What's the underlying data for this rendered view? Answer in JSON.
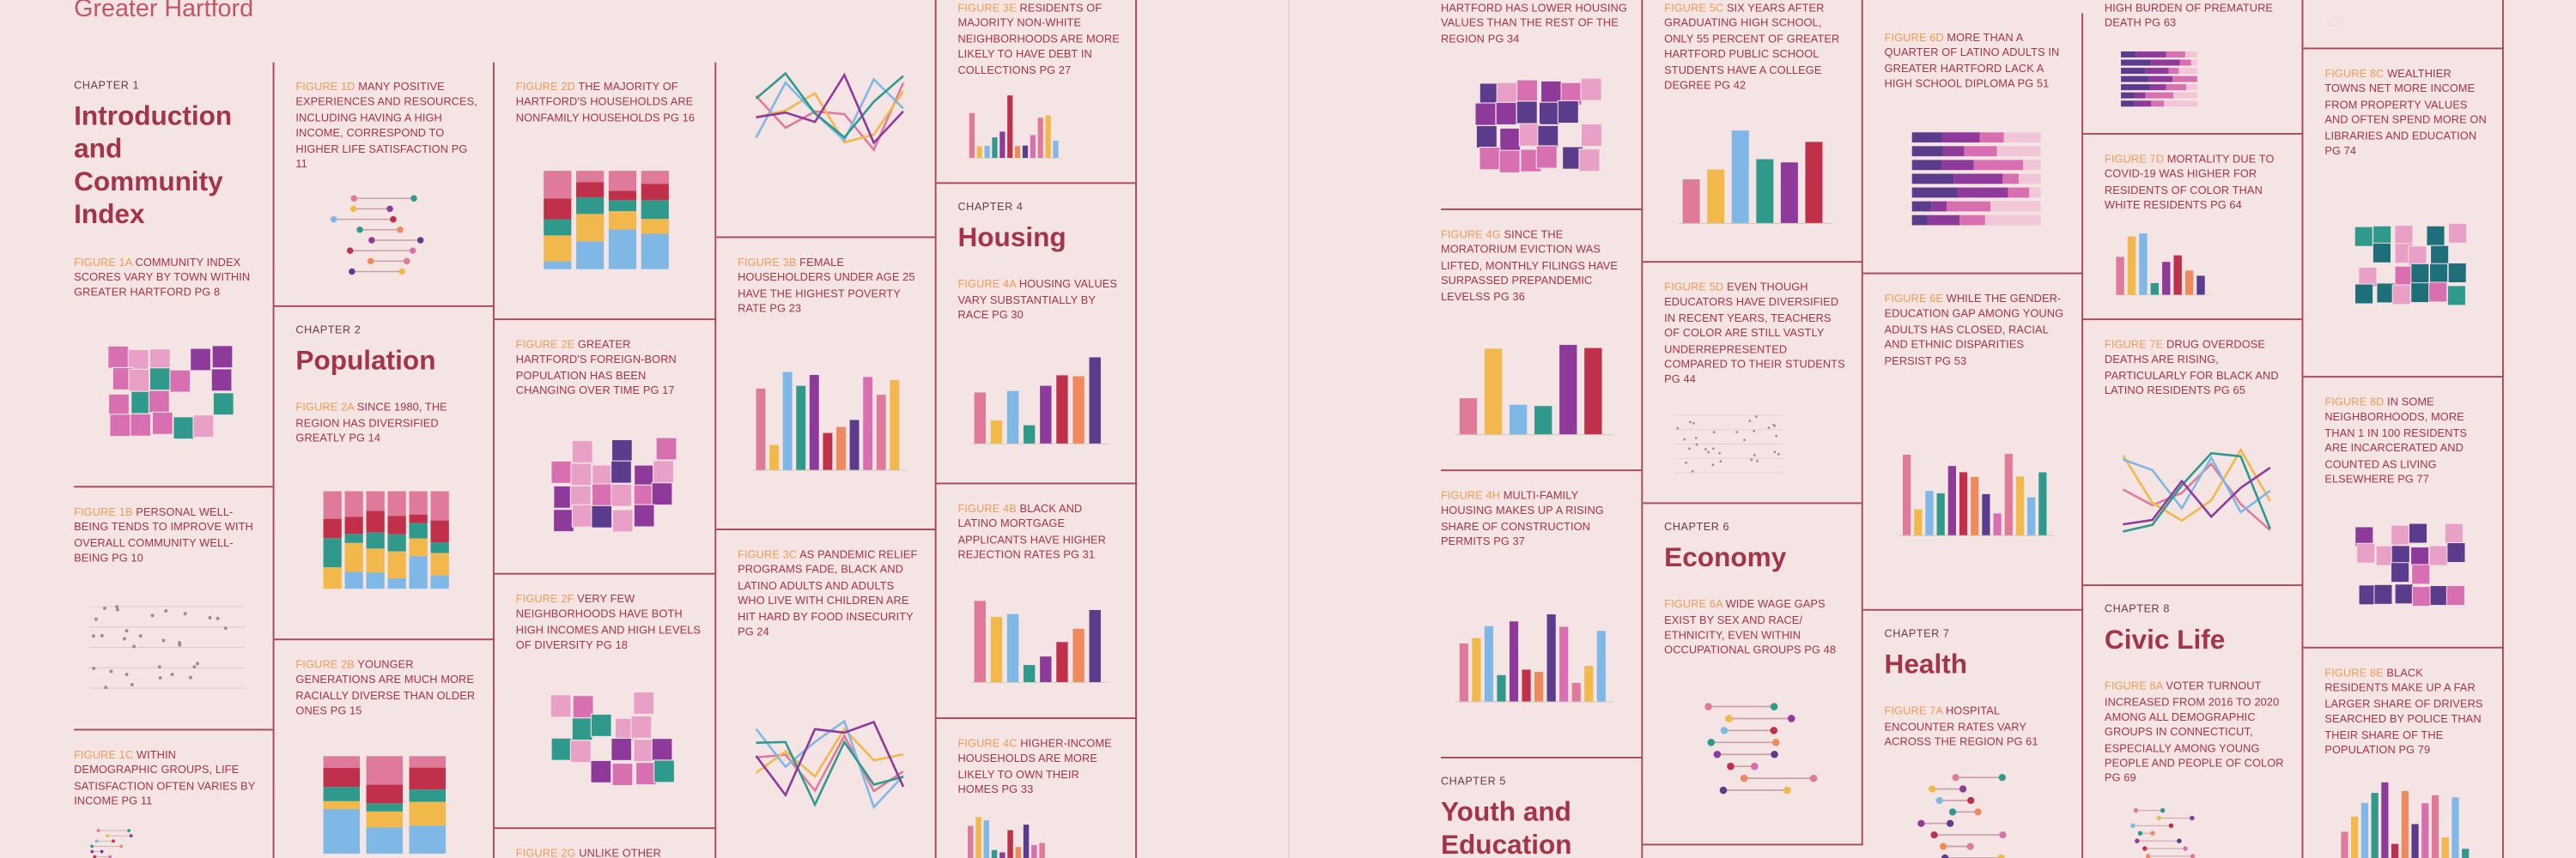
{
  "header": {
    "title": "Greater Hartford"
  },
  "cells": [
    {
      "chapter": "CHAPTER 1",
      "chapter_title": "Introduction and Community Index",
      "figure": {
        "label": "FIGURE 1A",
        "text": "COMMUNITY INDEX SCORES VARY BY TOWN WITHIN GREATER HARTFORD",
        "page": "PG 8"
      }
    },
    {
      "figure": {
        "label": "FIGURE 1B",
        "text": "PERSONAL WELL-BEING TENDS TO IMPROVE WITH OVERALL COMMUNITY WELL-BEING",
        "page": "PG 10"
      }
    },
    {
      "figure": {
        "label": "FIGURE 1C",
        "text": "WITHIN DEMOGRAPHIC GROUPS, LIFE SATISFACTION OFTEN VARIES BY INCOME",
        "page": "PG 11"
      }
    },
    {
      "figure": {
        "label": "FIGURE 1D",
        "text": "MANY POSITIVE EXPERIENCES AND RESOURCES, INCLUDING HAVING A HIGH INCOME, CORRESPOND TO HIGHER LIFE SATISFACTION",
        "page": "PG 11"
      }
    },
    {
      "chapter": "CHAPTER 2",
      "chapter_title": "Population",
      "figure": {
        "label": "FIGURE 2A",
        "text": "SINCE 1980, THE REGION HAS DIVERSIFIED GREATLY",
        "page": "PG 14"
      }
    },
    {
      "figure": {
        "label": "FIGURE 2B",
        "text": "YOUNGER GENERATIONS ARE MUCH MORE RACIALLY DIVERSE THAN OLDER ONES",
        "page": "PG 15"
      }
    },
    {
      "figure": {
        "label": "FIGURE 2D",
        "text": "THE MAJORITY OF HARTFORD'S HOUSEHOLDS ARE NONFAMILY HOUSEHOLDS",
        "page": "PG 16"
      }
    },
    {
      "figure": {
        "label": "FIGURE 2E",
        "text": "GREATER HARTFORD'S FOREIGN-BORN POPULATION HAS BEEN CHANGING OVER TIME",
        "page": "PG 17"
      }
    },
    {
      "figure": {
        "label": "FIGURE 2F",
        "text": "VERY FEW NEIGHBORHOODS HAVE BOTH HIGH INCOMES AND HIGH LEVELS OF DIVERSITY",
        "page": "PG 18"
      }
    },
    {
      "figure": {
        "label": "FIGURE 2G",
        "text": "UNLIKE OTHER"
      }
    },
    {},
    {
      "figure": {
        "label": "FIGURE 3B",
        "text": "FEMALE HOUSEHOLDERS UNDER AGE 25 HAVE THE HIGHEST POVERTY RATE",
        "page": "PG 23"
      }
    },
    {
      "figure": {
        "label": "FIGURE 3C",
        "text": "AS PANDEMIC RELIEF PROGRAMS FADE, BLACK AND LATINO ADULTS AND ADULTS WHO LIVE WITH CHILDREN ARE HIT HARD BY FOOD INSECURITY",
        "page": "PG 24"
      }
    },
    {
      "figure": {
        "label": "FIGURE 3E",
        "text": "RESIDENTS OF MAJORITY NON-WHITE NEIGHBORHOODS ARE MORE LIKELY TO HAVE DEBT IN COLLECTIONS",
        "page": "PG 27"
      }
    },
    {
      "chapter": "CHAPTER 4",
      "chapter_title": "Housing",
      "figure": {
        "label": "FIGURE 4A",
        "text": "HOUSING VALUES VARY SUBSTANTIALLY BY RACE",
        "page": "PG 30"
      }
    },
    {
      "figure": {
        "label": "FIGURE 4B",
        "text": "BLACK AND LATINO MORTGAGE APPLICANTS HAVE HIGHER REJECTION RATES",
        "page": "PG 31"
      }
    },
    {
      "figure": {
        "label": "FIGURE 4C",
        "text": "HIGHER-INCOME HOUSEHOLDS ARE MORE LIKELY TO OWN THEIR HOMES",
        "page": "PG 33"
      }
    },
    {
      "figure": {
        "text": "HARTFORD HAS LOWER HOUSING VALUES THAN THE REST OF THE REGION",
        "page": "PG 34"
      }
    },
    {
      "figure": {
        "label": "FIGURE 4G",
        "text": "SINCE THE MORATORIUM EVICTION WAS LIFTED, MONTHLY FILINGS HAVE SURPASSED PREPANDEMIC LEVELSS",
        "page": "PG 36"
      }
    },
    {
      "figure": {
        "label": "FIGURE 4H",
        "text": "MULTI-FAMILY HOUSING MAKES UP A RISING SHARE OF CONSTRUCTION PERMITS",
        "page": "PG 37"
      }
    },
    {
      "chapter": "CHAPTER 5",
      "chapter_title": "Youth and Education"
    },
    {
      "figure": {
        "label": "FIGURE 5C",
        "text": "SIX YEARS AFTER GRADUATING HIGH SCHOOL, ONLY 55 PERCENT OF GREATER HARTFORD PUBLIC SCHOOL STUDENTS HAVE A COLLEGE DEGREE",
        "page": "PG 42"
      }
    },
    {
      "figure": {
        "label": "FIGURE 5D",
        "text": "EVEN THOUGH EDUCATORS HAVE DIVERSIFIED IN RECENT YEARS, TEACHERS OF COLOR ARE STILL VASTLY UNDERREPRESENTED COMPARED TO THEIR STUDENTS",
        "page": "PG 44"
      }
    },
    {
      "chapter": "CHAPTER 6",
      "chapter_title": "Economy",
      "figure": {
        "label": "FIGURE 6A",
        "text": "WIDE WAGE GAPS EXIST BY SEX AND RACE/ ETHNICITY, EVEN WITHIN OCCUPATIONAL GROUPS",
        "page": "PG 48"
      }
    },
    {
      "figure": {
        "label": "FIGURE 6D",
        "text": "MORE THAN A QUARTER OF LATINO ADULTS IN GREATER HARTFORD LACK A HIGH SCHOOL DIPLOMA",
        "page": "PG 51"
      }
    },
    {
      "figure": {
        "label": "FIGURE 6E",
        "text": "WHILE THE GENDER-EDUCATION GAP AMONG YOUNG ADULTS HAS CLOSED, RACIAL AND ETHNIC DISPARITIES PERSIST",
        "page": "PG 53"
      }
    },
    {
      "chapter": "CHAPTER 7",
      "chapter_title": "Health",
      "figure": {
        "label": "FIGURE 7A",
        "text": "HOSPITAL ENCOUNTER RATES VARY ACROSS THE REGION",
        "page": "PG 61"
      }
    },
    {
      "figure": {
        "text": "HIGH BURDEN OF PREMATURE DEATH",
        "page": "PG 63"
      }
    },
    {
      "figure": {
        "label": "FIGURE 7D",
        "text": "MORTALITY DUE TO COVID-19 WAS HIGHER FOR RESIDENTS OF COLOR THAN WHITE RESIDENTS",
        "page": "PG 64"
      }
    },
    {
      "figure": {
        "label": "FIGURE 7E",
        "text": "DRUG OVERDOSE DEATHS ARE RISING, PARTICULARLY FOR BLACK AND LATINO RESIDENTS",
        "page": "PG 65"
      }
    },
    {
      "chapter": "CHAPTER 8",
      "chapter_title": "Civic Life",
      "figure": {
        "label": "FIGURE 8A",
        "text": "VOTER TURNOUT INCREASED FROM 2016 TO 2020 AMONG ALL DEMOGRAPHIC GROUPS IN CONNECTICUT, ESPECIALLY AMONG YOUNG PEOPLE AND PEOPLE OF COLOR",
        "page": "PG 69"
      }
    },
    {},
    {
      "figure": {
        "label": "FIGURE 8C",
        "text": "WEALTHIER TOWNS NET MORE INCOME FROM PROPERTY VALUES AND OFTEN SPEND MORE ON LIBRARIES AND EDUCATION",
        "page": "PG 74"
      }
    },
    {
      "figure": {
        "label": "FIGURE 8D",
        "text": "IN SOME NEIGHBORHOODS, MORE THAN 1 IN 100 RESIDENTS ARE INCARCERATED AND COUNTED AS LIVING ELSEWHERE",
        "page": "PG 77"
      }
    },
    {
      "figure": {
        "label": "FIGURE 8E",
        "text": "BLACK RESIDENTS MAKE UP A FAR LARGER SHARE OF DRIVERS SEARCHED BY POLICE THAN THEIR SHARE OF THE POPULATION",
        "page": "PG 79"
      }
    }
  ]
}
